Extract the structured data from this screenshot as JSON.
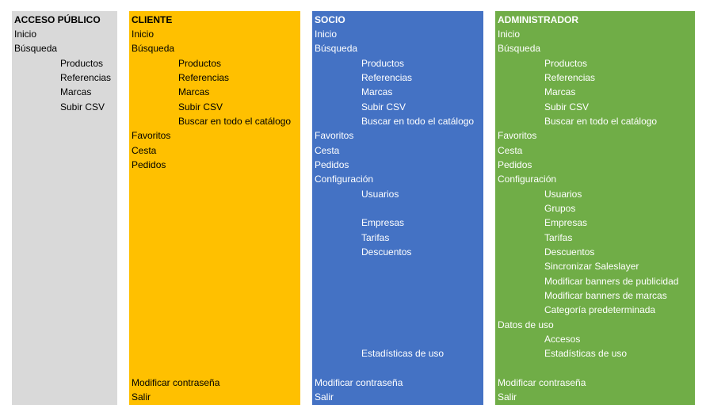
{
  "public": {
    "title": "ACCESO PÚBLICO",
    "inicio": "Inicio",
    "busqueda": "Búsqueda",
    "productos": "Productos",
    "referencias": "Referencias",
    "marcas": "Marcas",
    "subir_csv": "Subir CSV"
  },
  "client": {
    "title": "CLIENTE",
    "inicio": "Inicio",
    "busqueda": "Búsqueda",
    "productos": "Productos",
    "referencias": "Referencias",
    "marcas": "Marcas",
    "subir_csv": "Subir CSV",
    "buscar_catalogo": "Buscar en todo el catálogo",
    "favoritos": "Favoritos",
    "cesta": "Cesta",
    "pedidos": "Pedidos",
    "modificar_contrasena": "Modificar contraseña",
    "salir": "Salir"
  },
  "partner": {
    "title": "SOCIO",
    "inicio": "Inicio",
    "busqueda": "Búsqueda",
    "productos": "Productos",
    "referencias": "Referencias",
    "marcas": "Marcas",
    "subir_csv": "Subir CSV",
    "buscar_catalogo": "Buscar en todo el catálogo",
    "favoritos": "Favoritos",
    "cesta": "Cesta",
    "pedidos": "Pedidos",
    "configuracion": "Configuración",
    "usuarios": "Usuarios",
    "empresas": "Empresas",
    "tarifas": "Tarifas",
    "descuentos": "Descuentos",
    "estadisticas": "Estadísticas de uso",
    "modificar_contrasena": "Modificar contraseña",
    "salir": "Salir"
  },
  "admin": {
    "title": "ADMINISTRADOR",
    "inicio": "Inicio",
    "busqueda": "Búsqueda",
    "productos": "Productos",
    "referencias": "Referencias",
    "marcas": "Marcas",
    "subir_csv": "Subir CSV",
    "buscar_catalogo": "Buscar en todo el catálogo",
    "favoritos": "Favoritos",
    "cesta": "Cesta",
    "pedidos": "Pedidos",
    "configuracion": "Configuración",
    "usuarios": "Usuarios",
    "grupos": "Grupos",
    "empresas": "Empresas",
    "tarifas": "Tarifas",
    "descuentos": "Descuentos",
    "sincronizar": "Sincronizar Saleslayer",
    "banners_publicidad": "Modificar banners de publicidad",
    "banners_marcas": "Modificar banners de marcas",
    "categoria": "Categoría predeterminada",
    "datos_uso": "Datos de uso",
    "accesos": "Accesos",
    "estadisticas": "Estadísticas de uso",
    "modificar_contrasena": "Modificar contraseña",
    "salir": "Salir"
  }
}
